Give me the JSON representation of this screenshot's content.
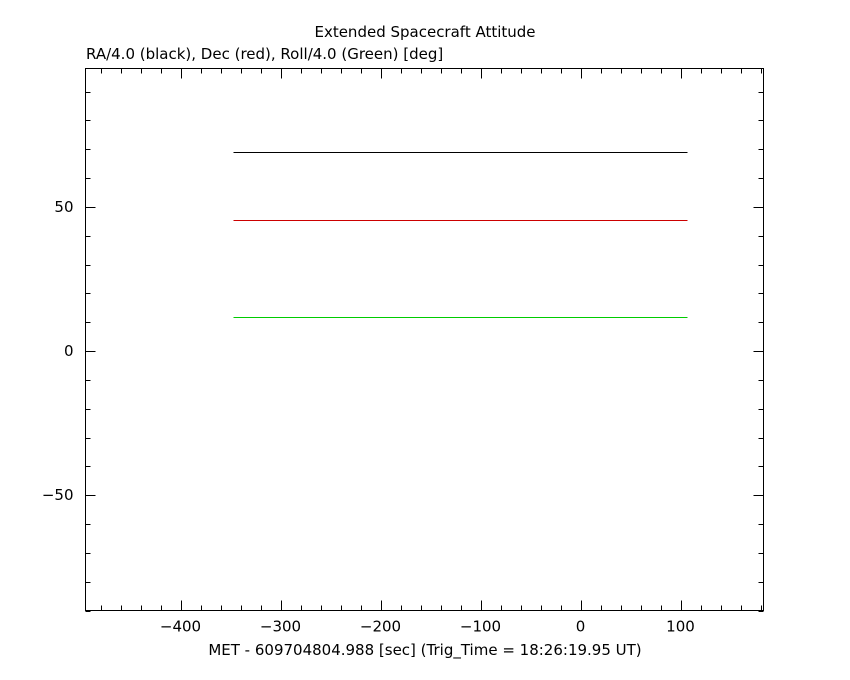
{
  "chart_data": {
    "type": "line",
    "title": "Extended Spacecraft Attitude",
    "subtitle": "RA/4.0 (black), Dec (red), Roll/4.0 (Green) [deg]",
    "xlabel": "MET - 609704804.988 [sec] (Trig_Time = 18:26:19.95 UT)",
    "ylabel": "",
    "xlim": [
      -495,
      183
    ],
    "ylim": [
      -90,
      98
    ],
    "x_major_ticks": [
      -400,
      -300,
      -200,
      -100,
      0,
      100
    ],
    "x_tick_labels": [
      "−400",
      "−300",
      "−200",
      "−100",
      "0",
      "100"
    ],
    "x_minor_step": 20,
    "y_major_ticks": [
      -50,
      0,
      50
    ],
    "y_tick_labels": [
      "−50",
      "0",
      "50"
    ],
    "y_minor_step": 10,
    "grid": false,
    "series": [
      {
        "color": "#000000",
        "x": [
          -347,
          107
        ],
        "y": [
          69,
          69
        ]
      },
      {
        "color": "#cc0000",
        "x": [
          -347,
          107
        ],
        "y": [
          45.3,
          45.3
        ]
      },
      {
        "color": "#00cc00",
        "x": [
          -347,
          107
        ],
        "y": [
          11.8,
          11.8
        ]
      }
    ]
  }
}
